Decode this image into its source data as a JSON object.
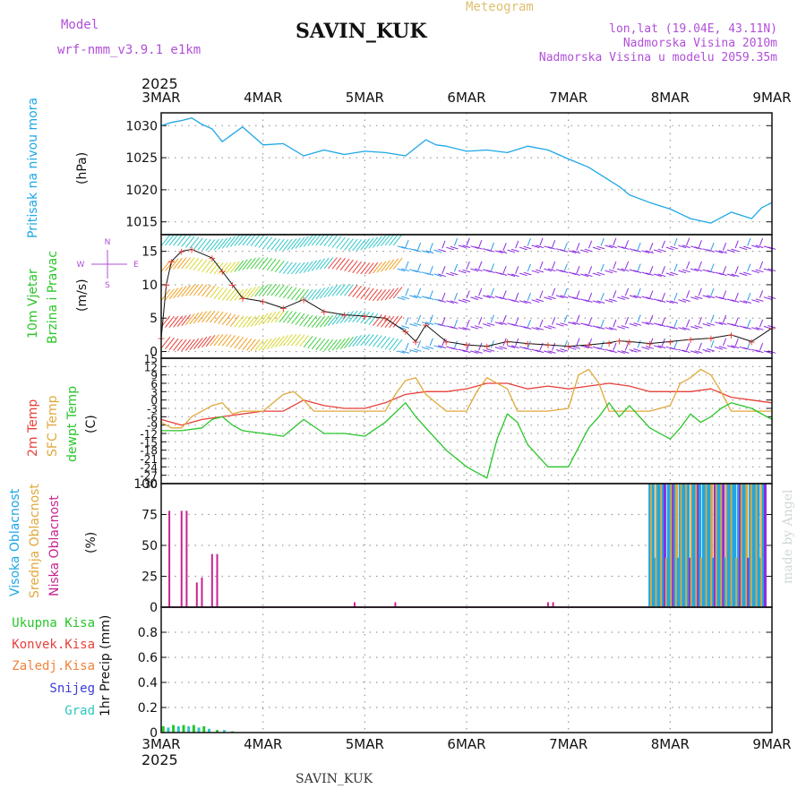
{
  "header": {
    "model_label": "Model",
    "model_name": "wrf-nmm_v3.9.1  e1km",
    "meteogram_label": "Meteogram",
    "station": "SAVIN_KUK",
    "lonlat": "lon,lat (19.04E, 43.11N)",
    "elevation": "Nadmorska Visina 2010m",
    "model_elevation": "Nadmorska Visina u modelu 2059.35m",
    "footer_station": "SAVIN_KUK",
    "credit": "made by Angel"
  },
  "colors": {
    "pressure": "#1ea7e6",
    "temp2m": "#e8403a",
    "sfc_temp": "#e0a83a",
    "dewpt": "#29c629",
    "wind_speed": "#e8403a",
    "precip_total": "#29c629",
    "cloud_high": "#1ea7e6",
    "cloud_mid": "#e0a83a",
    "cloud_low": "#c8238f",
    "purple": "#b04fd8"
  },
  "chart_data": [
    {
      "type": "line",
      "id": "pressure",
      "top_year": "2025",
      "top_ticks": [
        "3MAR",
        "4MAR",
        "5MAR",
        "6MAR",
        "7MAR",
        "8MAR",
        "9MAR"
      ],
      "ylabel_lines": [
        "Pritisak na nivou mora",
        "(hPa)"
      ],
      "ylim": [
        1013,
        1032
      ],
      "yticks": [
        1015,
        1020,
        1025,
        1030
      ],
      "series": [
        {
          "x": [
            0,
            0.1,
            0.2,
            0.3,
            0.4,
            0.5,
            0.6,
            0.8,
            1.0,
            1.2,
            1.4,
            1.6,
            1.8,
            2.0,
            2.2,
            2.4,
            2.6,
            2.7,
            2.8,
            3.0,
            3.2,
            3.4,
            3.6,
            3.8,
            4.0,
            4.2,
            4.4,
            4.5,
            4.6,
            4.8,
            5.0,
            5.2,
            5.4,
            5.6,
            5.8,
            5.9,
            6.0
          ],
          "values": [
            1030,
            1030.5,
            1030.8,
            1031.2,
            1030.2,
            1029.5,
            1027.5,
            1029.8,
            1027.0,
            1027.2,
            1025.3,
            1026.2,
            1025.5,
            1026.0,
            1025.8,
            1025.3,
            1027.8,
            1027.0,
            1026.8,
            1026.0,
            1026.2,
            1025.8,
            1026.8,
            1026.2,
            1024.8,
            1023.5,
            1021.5,
            1020.5,
            1019.2,
            1018.0,
            1017.0,
            1015.5,
            1014.8,
            1016.5,
            1015.5,
            1017.2,
            1018.0
          ]
        }
      ]
    },
    {
      "type": "line",
      "id": "wind",
      "ylabel_lines": [
        "10m Vjetar",
        "Brzina i Pravac",
        "(m/s)"
      ],
      "ylim": [
        -1,
        17.5
      ],
      "yticks": [
        0,
        5,
        10,
        15
      ],
      "compass": [
        "N",
        "W",
        "E",
        "S"
      ],
      "series": [
        {
          "name": "speed",
          "x": [
            0,
            0.05,
            0.1,
            0.2,
            0.3,
            0.5,
            0.6,
            0.7,
            0.8,
            1.0,
            1.2,
            1.4,
            1.6,
            1.8,
            2.0,
            2.2,
            2.4,
            2.5,
            2.6,
            2.8,
            3.0,
            3.2,
            3.4,
            3.6,
            3.8,
            4.0,
            4.2,
            4.4,
            4.5,
            4.6,
            4.8,
            5.0,
            5.2,
            5.4,
            5.6,
            5.8,
            6.0
          ],
          "values": [
            2,
            10,
            13.5,
            15,
            15.3,
            14,
            12,
            10,
            8,
            7.5,
            6.5,
            7.8,
            6,
            5.5,
            5.3,
            5,
            3,
            1.5,
            4,
            1.5,
            1.0,
            0.8,
            1.5,
            1.2,
            1.0,
            0.8,
            1.0,
            1.3,
            1.6,
            1.5,
            1.2,
            1.5,
            1.8,
            2.0,
            2.5,
            1.5,
            3.5
          ]
        }
      ]
    },
    {
      "type": "line",
      "id": "temperature",
      "ylabel_lines": [
        "2m Temp",
        "SFC Temp",
        "dewpt Temp",
        "(C)"
      ],
      "ylim": [
        -30,
        15
      ],
      "yticks": [
        15,
        12,
        9,
        6,
        3,
        0,
        -3,
        -6,
        -9,
        -12,
        -15,
        -18,
        -21,
        -24,
        -27,
        -30
      ],
      "series": [
        {
          "name": "2m Temp",
          "x": [
            0,
            0.2,
            0.4,
            0.6,
            0.8,
            1.0,
            1.2,
            1.4,
            1.6,
            1.8,
            2.0,
            2.2,
            2.4,
            2.6,
            2.8,
            3.0,
            3.2,
            3.4,
            3.6,
            3.8,
            4.0,
            4.2,
            4.4,
            4.6,
            4.8,
            5.0,
            5.2,
            5.4,
            5.6,
            5.8,
            6.0
          ],
          "values": [
            -7,
            -9,
            -7,
            -6,
            -5,
            -4,
            -4,
            0,
            -2,
            -3,
            -3,
            -1,
            2,
            3,
            3,
            4,
            6,
            6,
            4,
            5,
            4,
            5,
            6,
            5,
            3,
            3,
            3,
            4,
            1,
            0,
            -1
          ]
        },
        {
          "name": "SFC Temp",
          "x": [
            0,
            0.1,
            0.2,
            0.3,
            0.4,
            0.5,
            0.6,
            0.7,
            0.8,
            0.9,
            1.0,
            1.1,
            1.2,
            1.3,
            1.4,
            1.5,
            1.6,
            1.7,
            1.8,
            2.0,
            2.2,
            2.3,
            2.4,
            2.5,
            2.6,
            2.8,
            3.0,
            3.1,
            3.2,
            3.4,
            3.5,
            3.6,
            3.8,
            4.0,
            4.1,
            4.2,
            4.3,
            4.4,
            4.6,
            4.8,
            5.0,
            5.1,
            5.2,
            5.3,
            5.4,
            5.5,
            5.6,
            5.8,
            6.0
          ],
          "values": [
            -8,
            -10,
            -10,
            -6,
            -4,
            -2,
            -1,
            -5,
            -4,
            -4,
            -4,
            -1,
            2,
            3,
            0,
            -4,
            -4,
            -4,
            -4,
            -4,
            -4,
            2,
            7,
            8,
            2,
            -4,
            -4,
            3,
            8,
            4,
            -4,
            -4,
            -4,
            -3,
            9,
            11,
            6,
            -4,
            -4,
            -4,
            -2,
            6,
            8,
            11,
            9,
            3,
            -4,
            -4,
            -4
          ]
        },
        {
          "name": "dewpt Temp",
          "x": [
            0,
            0.2,
            0.4,
            0.5,
            0.6,
            0.7,
            0.8,
            1.0,
            1.2,
            1.4,
            1.6,
            1.8,
            2.0,
            2.2,
            2.4,
            2.5,
            2.6,
            2.8,
            3.0,
            3.2,
            3.3,
            3.4,
            3.5,
            3.6,
            3.7,
            3.8,
            4.0,
            4.2,
            4.3,
            4.4,
            4.5,
            4.6,
            4.8,
            5.0,
            5.1,
            5.2,
            5.3,
            5.4,
            5.5,
            5.6,
            5.8,
            6.0
          ],
          "values": [
            -11,
            -11,
            -10,
            -7,
            -6,
            -9,
            -11,
            -12,
            -13,
            -7,
            -12,
            -12,
            -13,
            -8,
            -1,
            -6,
            -10,
            -18,
            -24,
            -28,
            -14,
            -5,
            -8,
            -16,
            -20,
            -24,
            -24,
            -10,
            -6,
            -1,
            -6,
            -2,
            -10,
            -14,
            -10,
            -5,
            -8,
            -6,
            -3,
            -1,
            -3,
            -7
          ]
        }
      ]
    },
    {
      "type": "bar",
      "id": "cloud",
      "ylabel_lines": [
        "Visoka Oblacnost",
        "Srednja Oblacnost",
        "Niska Oblacnost",
        "(%)"
      ],
      "ylim": [
        0,
        100
      ],
      "yticks": [
        0,
        25,
        50,
        75,
        100
      ],
      "series": [
        {
          "name": "Niska Oblacnost",
          "x": [
            0.08,
            0.2,
            0.25,
            0.35,
            0.4,
            0.5,
            0.55,
            1.9,
            2.3,
            3.8,
            3.85
          ],
          "values": [
            78,
            78,
            78,
            20,
            24,
            43,
            43,
            4,
            4,
            4,
            4
          ]
        },
        {
          "name": "Visoka Oblacnost",
          "x_range": [
            4.8,
            5.95
          ],
          "value": 100
        }
      ]
    },
    {
      "type": "bar",
      "id": "precip",
      "ylabel_lines": [
        "1hr Precip (mm)"
      ],
      "legend": [
        "Ukupna Kisa",
        "Konvek.Kisa",
        "Zaledj.Kisa",
        "Snijeg",
        "Grad"
      ],
      "ylim": [
        0,
        1
      ],
      "yticks": [
        0,
        0.2,
        0.4,
        0.6,
        0.8
      ],
      "x": [
        0.02,
        0.07,
        0.12,
        0.17,
        0.22,
        0.27,
        0.32,
        0.37,
        0.42,
        0.47,
        0.55,
        0.62,
        0.7
      ],
      "values": [
        0.05,
        0.04,
        0.06,
        0.05,
        0.06,
        0.05,
        0.06,
        0.04,
        0.05,
        0.03,
        0.02,
        0.02,
        0.01
      ],
      "bottom_ticks": [
        "3MAR",
        "4MAR",
        "5MAR",
        "6MAR",
        "7MAR",
        "8MAR",
        "9MAR"
      ],
      "bottom_year": "2025"
    }
  ]
}
